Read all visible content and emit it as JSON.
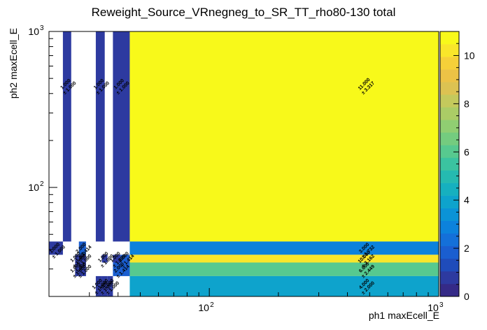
{
  "chart_data": {
    "type": "heatmap",
    "title": "Reweight_Source_VRnegneg_to_SR_TT_rho80-130 total",
    "xlabel": "ph1 maxEcell_E",
    "ylabel": "ph2 maxEcell_E",
    "x_scale": "log",
    "y_scale": "log",
    "xlim": [
      20,
      1000
    ],
    "ylim": [
      20,
      1000
    ],
    "x_major_ticks": [
      {
        "value": 100,
        "label": "10",
        "exp": "2"
      },
      {
        "value": 1000,
        "label": "10",
        "exp": "3"
      }
    ],
    "y_major_ticks": [
      {
        "value": 100,
        "label": "10",
        "exp": "2"
      },
      {
        "value": 1000,
        "label": "10",
        "exp": "3"
      }
    ],
    "zlim": [
      0,
      11
    ],
    "z_ticks": [
      0,
      2,
      4,
      6,
      8,
      10
    ],
    "palette": [
      "#352a87",
      "#2d3aa0",
      "#1f4cba",
      "#1a5ed0",
      "#1470d9",
      "#0c82dc",
      "#0b93d6",
      "#0ea3cc",
      "#16b0bf",
      "#25bab0",
      "#3bc3a0",
      "#57c98f",
      "#74cc7f",
      "#90ce72",
      "#abcc66",
      "#c4c95c",
      "#dcc252",
      "#ecc246",
      "#f6d039",
      "#f9e62a",
      "#f8f91a"
    ],
    "cells": [
      {
        "x0": 23,
        "x1": 25,
        "y0": 45,
        "y1": 1000,
        "value": 1,
        "label": "1.000",
        "err": "± 1.000",
        "label_at": [
          24,
          450
        ]
      },
      {
        "x0": 32,
        "x1": 35,
        "y0": 45,
        "y1": 1000,
        "value": 1,
        "label": "1.000",
        "err": "± 1.000",
        "label_at": [
          33.5,
          450
        ]
      },
      {
        "x0": 38,
        "x1": 45,
        "y0": 45,
        "y1": 1000,
        "value": 1,
        "label": "1.000",
        "err": "± 1.000",
        "label_at": [
          41,
          450
        ]
      },
      {
        "x0": 45,
        "x1": 1000,
        "y0": 45,
        "y1": 1000,
        "value": 11,
        "label": "11.000",
        "err": "± 3.317",
        "label_at": [
          480,
          450
        ]
      },
      {
        "x0": 20,
        "x1": 23,
        "y0": 37,
        "y1": 45,
        "value": 1,
        "label": "1.000",
        "err": "± 1.000",
        "label_at": [
          21.5,
          40
        ]
      },
      {
        "x0": 27,
        "x1": 29,
        "y0": 37,
        "y1": 45,
        "value": 2,
        "label": "2.000",
        "err": "± 1.414",
        "label_at": [
          28,
          40
        ]
      },
      {
        "x0": 45,
        "x1": 1000,
        "y0": 37,
        "y1": 45,
        "value": 3,
        "label": "3.000",
        "err": "± 1.732",
        "label_at": [
          480,
          40
        ]
      },
      {
        "x0": 26,
        "x1": 27,
        "y0": 33,
        "y1": 37,
        "value": 1,
        "label": "1.000",
        "err": "± 1.000",
        "label_at": [
          26.5,
          35
        ]
      },
      {
        "x0": 27,
        "x1": 29,
        "y0": 33,
        "y1": 37,
        "value": 1,
        "label": "1.000",
        "err": "± 1.000",
        "label_at": [
          28,
          35
        ]
      },
      {
        "x0": 34,
        "x1": 36,
        "y0": 33,
        "y1": 37,
        "value": 1,
        "label": "1.000",
        "err": "± 1.000",
        "label_at": [
          35,
          35
        ]
      },
      {
        "x0": 38,
        "x1": 41,
        "y0": 33,
        "y1": 37,
        "value": 1,
        "label": "1.000",
        "err": "± 1.000",
        "label_at": [
          39.5,
          35
        ]
      },
      {
        "x0": 41,
        "x1": 45,
        "y0": 33,
        "y1": 37,
        "value": 2,
        "label": "2.000",
        "err": "± 1.414",
        "label_at": [
          43,
          35
        ]
      },
      {
        "x0": 45,
        "x1": 1000,
        "y0": 33,
        "y1": 37,
        "value": 10,
        "label": "10.000",
        "err": "± 3.162",
        "label_at": [
          480,
          35
        ]
      },
      {
        "x0": 26,
        "x1": 27,
        "y0": 27,
        "y1": 33,
        "value": 1,
        "label": "1.000",
        "err": "± 1.000",
        "label_at": [
          26.5,
          30
        ]
      },
      {
        "x0": 27,
        "x1": 29,
        "y0": 27,
        "y1": 33,
        "value": 1,
        "label": "1.000",
        "err": "± 1.000",
        "label_at": [
          28,
          30
        ]
      },
      {
        "x0": 38,
        "x1": 45,
        "y0": 27,
        "y1": 33,
        "value": 2,
        "label": "2.000",
        "err": "± 1.414",
        "label_at": [
          41,
          30
        ]
      },
      {
        "x0": 45,
        "x1": 1000,
        "y0": 27,
        "y1": 33,
        "value": 6,
        "label": "6.000",
        "err": "± 2.449",
        "label_at": [
          480,
          30
        ]
      },
      {
        "x0": 32,
        "x1": 34,
        "y0": 20,
        "y1": 27,
        "value": 1,
        "label": "1.000",
        "err": "± 1.000",
        "label_at": [
          33,
          23.5
        ]
      },
      {
        "x0": 34,
        "x1": 36,
        "y0": 20,
        "y1": 27,
        "value": 1,
        "label": "1.000",
        "err": "± 1.000",
        "label_at": [
          35,
          23.5
        ]
      },
      {
        "x0": 36,
        "x1": 38,
        "y0": 20,
        "y1": 27,
        "value": 1,
        "label": "1.000",
        "err": "± 1.000",
        "label_at": [
          37,
          23.5
        ]
      },
      {
        "x0": 45,
        "x1": 1000,
        "y0": 20,
        "y1": 27,
        "value": 4,
        "label": "4.000",
        "err": "± 2.000",
        "label_at": [
          480,
          23.5
        ]
      }
    ]
  }
}
